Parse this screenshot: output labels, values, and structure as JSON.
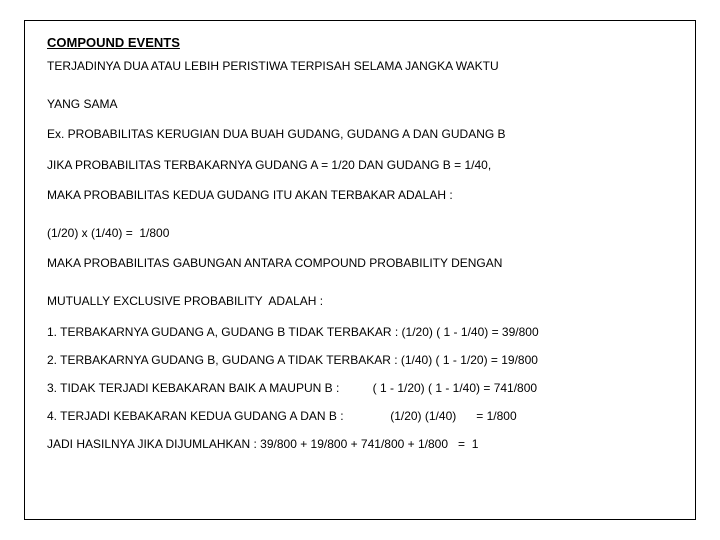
{
  "heading": "COMPOUND EVENTS",
  "lines": {
    "l1": "TERJADINYA DUA ATAU LEBIH PERISTIWA TERPISAH SELAMA JANGKA WAKTU",
    "l2": "YANG SAMA",
    "l3": "Ex. PROBABILITAS KERUGIAN DUA BUAH GUDANG, GUDANG A DAN GUDANG B",
    "l4": "JIKA PROBABILITAS TERBAKARNYA GUDANG A = 1/20 DAN GUDANG B = 1/40,",
    "l5": "MAKA PROBABILITAS KEDUA GUDANG ITU AKAN TERBAKAR ADALAH :",
    "l6": "(1/20) x (1/40) =  1/800",
    "l7": "MAKA PROBABILITAS GABUNGAN ANTARA COMPOUND PROBABILITY DENGAN",
    "l8": "MUTUALLY EXCLUSIVE PROBABILITY  ADALAH :",
    "l9": "1. TERBAKARNYA GUDANG A, GUDANG B TIDAK TERBAKAR : (1/20) ( 1 - 1/40) = 39/800",
    "l10": "2. TERBAKARNYA GUDANG B, GUDANG A TIDAK TERBAKAR : (1/40) ( 1 - 1/20) = 19/800",
    "l11": "3. TIDAK TERJADI KEBAKARAN BAIK A MAUPUN B :          ( 1 - 1/20) ( 1 - 1/40) = 741/800",
    "l12": "4. TERJADI KEBAKARAN KEDUA GUDANG A DAN B :              (1/20) (1/40)      = 1/800",
    "l13": "JADI HASILNYA JIKA DIJUMLAHKAN : 39/800 + 19/800 + 741/800 + 1/800   =  1"
  }
}
